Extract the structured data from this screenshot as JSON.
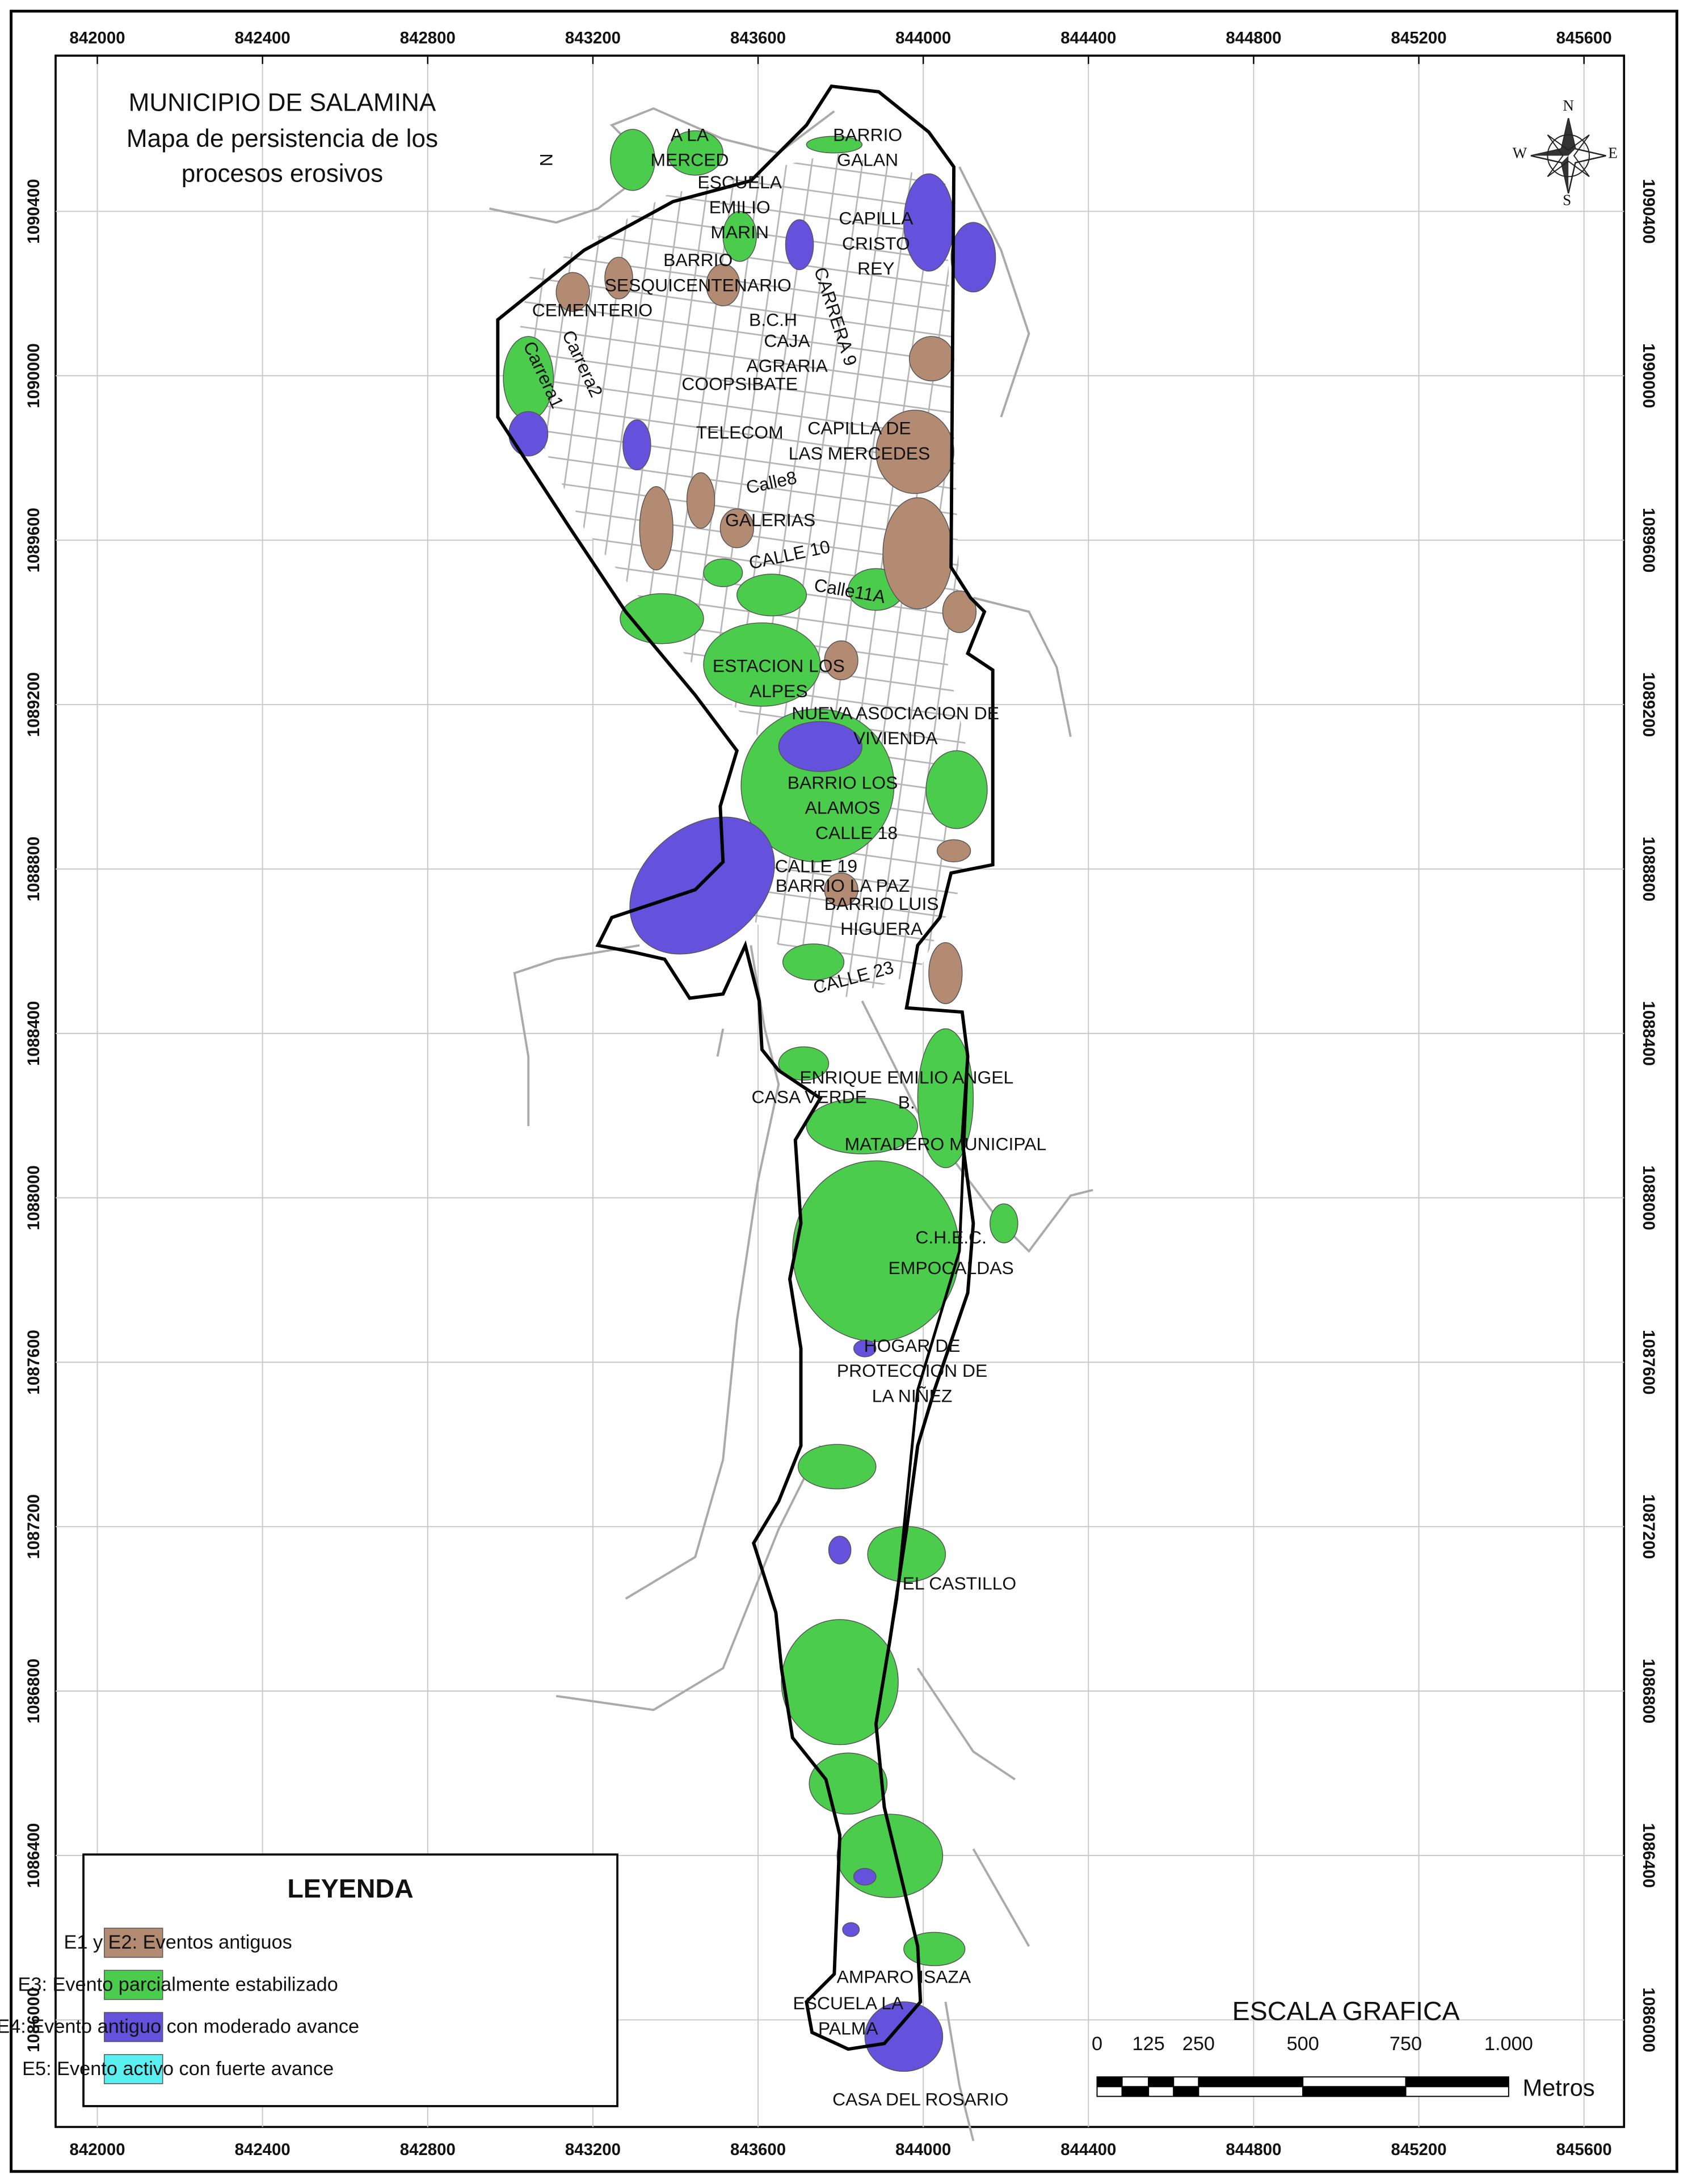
{
  "title": [
    "MUNICIPIO DE SALAMINA",
    "Mapa de persistencia de los",
    "procesos erosivos"
  ],
  "xticks": [
    842000,
    842400,
    842800,
    843200,
    843600,
    844000,
    844400,
    844800,
    845200,
    845600
  ],
  "yticks": [
    1090400,
    1090000,
    1089600,
    1089200,
    1088800,
    1088400,
    1088000,
    1087600,
    1087200,
    1086800,
    1086400,
    1086000
  ],
  "places": [
    "N",
    "A LA",
    "MERCED",
    "ESCUELA",
    "EMILIO",
    "MARIN",
    "BARRIO",
    "GALAN",
    "CAPILLA",
    "CRISTO",
    "REY",
    "BARRIO",
    "SESQUICENTENARIO",
    "CEMENTERIO",
    "Carrera2",
    "Carrera1",
    "CARRERA 9",
    "B.C.H",
    "CAJA",
    "AGRARIA",
    "COOPSIBATE",
    "TELECOM",
    "CAPILLA DE",
    "LAS MERCEDES",
    "Calle8",
    "GALERIAS",
    "CALLE 10",
    "Calle11A",
    "ESTACION LOS",
    "ALPES",
    "NUEVA ASOCIACION DE",
    "VIVIENDA",
    "BARRIO LOS",
    "ALAMOS",
    "CALLE 18",
    "CALLE 19",
    "BARRIO LA PAZ",
    "BARRIO LUIS",
    "HIGUERA",
    "CALLE 23",
    "ENRIQUE EMILIO ANGEL",
    "CASA VERDE",
    "B.",
    "MATADERO MUNICIPAL",
    "C.H.E.C.",
    "EMPOCALDAS",
    "HOGAR DE",
    "PROTECCION DE",
    "LA NIÑEZ",
    "EL CASTILLO",
    "AMPARO ISAZA",
    "ESCUELA LA",
    "PALMA",
    "CASA DEL ROSARIO"
  ],
  "legend": {
    "title": "LEYENDA",
    "items": [
      {
        "label": "E1 y E2: Eventos antiguos",
        "color": "#b38b73"
      },
      {
        "label": "E3: Evento parcialmente estabilizado",
        "color": "#4ccc4c"
      },
      {
        "label": "E4: Evento antiguo con moderado avance",
        "color": "#6552dc"
      },
      {
        "label": "E5: Evento activo con fuerte avance",
        "color": "#5af0f0"
      }
    ]
  },
  "scale": {
    "title": "ESCALA GRAFICA",
    "labels": [
      "0",
      "125",
      "250",
      "500",
      "750",
      "1.000"
    ],
    "unit": "Metros"
  },
  "compass": [
    "N",
    "S",
    "E",
    "W"
  ]
}
